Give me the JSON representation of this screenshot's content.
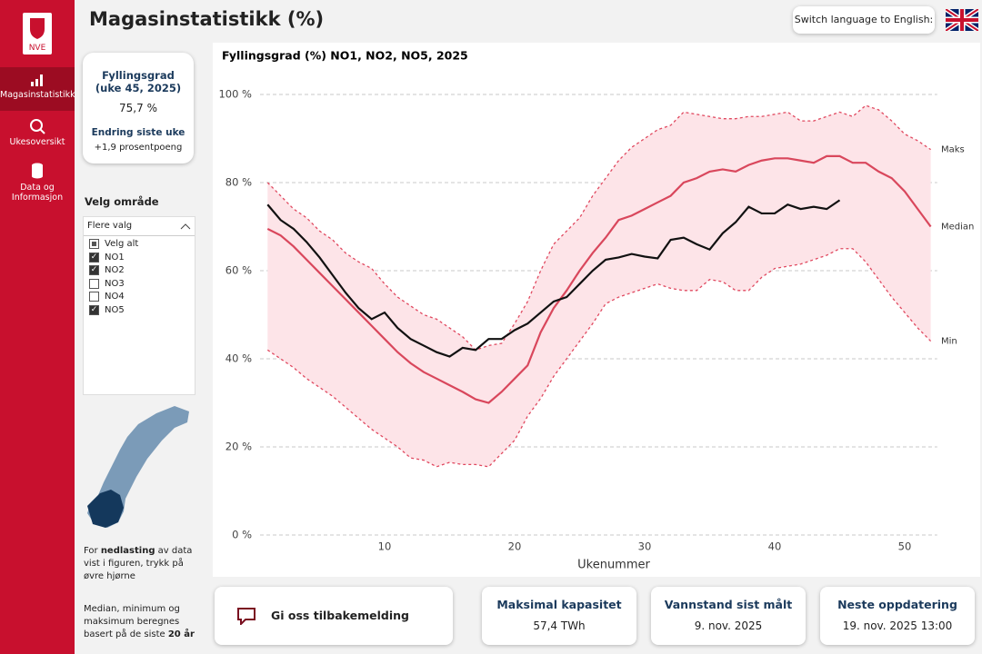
{
  "sidebar": {
    "logo": "NVE",
    "items": [
      "Magasinstatistikk",
      "Ukesoversikt",
      "Data og Informasjon"
    ]
  },
  "header": {
    "title": "Magasinstatistikk (%)",
    "language_button": "Switch language to English:"
  },
  "kpi": {
    "title": "Fyllingsgrad (uke 45, 2025)",
    "value": "75,7 %",
    "change_title": "Endring siste uke",
    "change_value": "+1,9 prosentpoeng"
  },
  "filter": {
    "title": "Velg område",
    "dropdown": "Flere valg",
    "options": [
      {
        "label": "Velg alt",
        "state": "mixed"
      },
      {
        "label": "NO1",
        "state": "checked"
      },
      {
        "label": "NO2",
        "state": "checked"
      },
      {
        "label": "NO3",
        "state": "unchecked"
      },
      {
        "label": "NO4",
        "state": "unchecked"
      },
      {
        "label": "NO5",
        "state": "checked"
      }
    ]
  },
  "notes": [
    [
      "For ",
      "nedlasting",
      " av data vist i figuren, trykk på øvre hjørne"
    ],
    [
      "Median, minimum og maksimum beregnes basert på de siste ",
      "20 år"
    ]
  ],
  "cards": {
    "feedback": "Gi oss tilbakemelding",
    "stats": [
      {
        "title": "Maksimal kapasitet",
        "value": "57,4 TWh"
      },
      {
        "title": "Vannstand sist målt",
        "value": "9. nov. 2025"
      },
      {
        "title": "Neste oppdatering",
        "value": "19. nov. 2025 13:00"
      }
    ]
  },
  "chart_data": {
    "type": "line",
    "title": "Fyllingsgrad (%) NO1, NO2, NO5, 2025",
    "xlabel": "Ukenummer",
    "x": [
      1,
      2,
      3,
      4,
      5,
      6,
      7,
      8,
      9,
      10,
      11,
      12,
      13,
      14,
      15,
      16,
      17,
      18,
      19,
      20,
      21,
      22,
      23,
      24,
      25,
      26,
      27,
      28,
      29,
      30,
      31,
      32,
      33,
      34,
      35,
      36,
      37,
      38,
      39,
      40,
      41,
      42,
      43,
      44,
      45,
      46,
      47,
      48,
      49,
      50,
      51,
      52
    ],
    "xlim": [
      0,
      52.5
    ],
    "xticks": [
      10,
      20,
      30,
      40,
      50
    ],
    "ylim": [
      0,
      100
    ],
    "yticks": [
      {
        "value": 0,
        "label": "0 %"
      },
      {
        "value": 20,
        "label": "20 %"
      },
      {
        "value": 40,
        "label": "40 %"
      },
      {
        "value": 60,
        "label": "60 %"
      },
      {
        "value": 80,
        "label": "80 %"
      },
      {
        "value": 100,
        "label": "100 %"
      }
    ],
    "grid": true,
    "band_color": "#fde4e8",
    "series": [
      {
        "name": "Maks",
        "color": "#e0485f",
        "style": "dotted",
        "values": [
          80,
          77,
          74,
          72,
          69,
          67,
          64,
          62,
          60.5,
          57,
          54,
          52,
          50,
          49,
          47,
          45,
          42,
          43,
          43.5,
          48,
          53,
          60,
          66,
          69,
          72,
          77,
          81,
          85,
          88,
          90,
          92,
          93,
          96,
          95.5,
          95,
          94.5,
          94.5,
          95,
          95,
          95.5,
          96,
          94,
          94,
          95,
          96,
          95,
          97.5,
          96.5,
          94,
          91,
          89.5,
          87.5
        ]
      },
      {
        "name": "Median",
        "color": "#d9475c",
        "style": "solid",
        "values": [
          69.5,
          68,
          65.5,
          62.5,
          59.5,
          56.5,
          53.5,
          50.5,
          47.5,
          44.5,
          41.5,
          39,
          37,
          35.5,
          34,
          32.5,
          30.8,
          30,
          32.5,
          35.5,
          38.5,
          46,
          51.5,
          55.5,
          60,
          64,
          67.5,
          71.5,
          72.5,
          74,
          75.5,
          77,
          80,
          81,
          82.5,
          83,
          82.5,
          84,
          85,
          85.5,
          85.5,
          85,
          84.5,
          86,
          86,
          84.5,
          84.5,
          82.5,
          81,
          78,
          74,
          70
        ]
      },
      {
        "name": "Min",
        "color": "#e0485f",
        "style": "dotted",
        "values": [
          42,
          40,
          38,
          35.5,
          33.5,
          31.5,
          29,
          26.5,
          24,
          22,
          20,
          17.5,
          17,
          15.5,
          16.5,
          16,
          16,
          15.5,
          18.5,
          21.5,
          27,
          31,
          36,
          40,
          44,
          48,
          52.5,
          54,
          55,
          56,
          57,
          56,
          55.5,
          55.5,
          58,
          57.5,
          55.5,
          55.5,
          58.5,
          60.5,
          61,
          61.5,
          62.5,
          63.5,
          65,
          65,
          62,
          58,
          54,
          50.5,
          47,
          44
        ]
      },
      {
        "color": "#111111",
        "style": "solid",
        "values": [
          75,
          71.5,
          69.5,
          66.5,
          63,
          59,
          55,
          51.5,
          49,
          50.5,
          47,
          44.5,
          43,
          41.5,
          40.5,
          42.5,
          42,
          44.5,
          44.5,
          46.5,
          48,
          50.5,
          53,
          54,
          57,
          60,
          62.5,
          63,
          63.8,
          63.2,
          62.8,
          67,
          67.5,
          66,
          64.8,
          68.5,
          71,
          74.5,
          73,
          73,
          75,
          74,
          74.5,
          74,
          76,
          null,
          null,
          null,
          null,
          null,
          null,
          null
        ]
      }
    ]
  }
}
